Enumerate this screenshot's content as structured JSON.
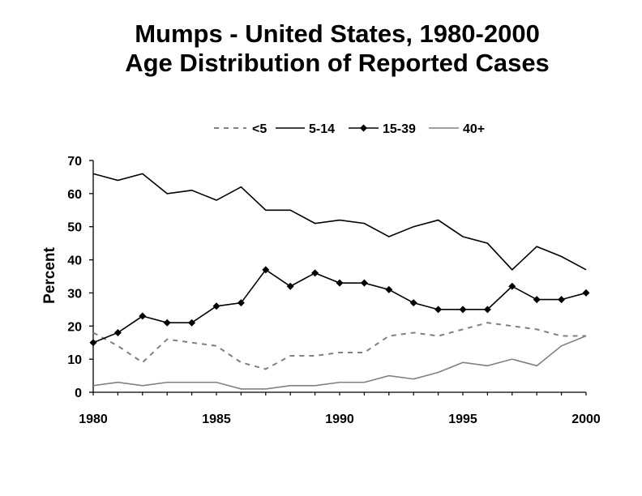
{
  "chart_data": {
    "type": "line",
    "title": "Mumps - United States, 1980-2000",
    "subtitle": "Age Distribution of Reported Cases",
    "xlabel": "",
    "ylabel": "Percent",
    "xlim": [
      1980,
      2000
    ],
    "ylim": [
      0,
      70
    ],
    "x_ticks": [
      1980,
      1985,
      1990,
      1995,
      2000
    ],
    "y_ticks": [
      0,
      10,
      20,
      30,
      40,
      50,
      60,
      70
    ],
    "grid": false,
    "legend_position": "top",
    "x": [
      1980,
      1981,
      1982,
      1983,
      1984,
      1985,
      1986,
      1987,
      1988,
      1989,
      1990,
      1991,
      1992,
      1993,
      1994,
      1995,
      1996,
      1997,
      1998,
      1999,
      2000
    ],
    "series": [
      {
        "name": "<5",
        "style": "dashed",
        "color": "#808080",
        "values": [
          18,
          14,
          9,
          16,
          15,
          14,
          9,
          7,
          11,
          11,
          12,
          12,
          17,
          18,
          17,
          19,
          21,
          20,
          19,
          17,
          17
        ]
      },
      {
        "name": "5-14",
        "style": "solid",
        "color": "#000000",
        "values": [
          66,
          64,
          66,
          60,
          61,
          58,
          62,
          55,
          55,
          51,
          52,
          51,
          47,
          50,
          52,
          47,
          45,
          37,
          44,
          41,
          37
        ]
      },
      {
        "name": "15-39",
        "style": "solid-diamond",
        "color": "#000000",
        "values": [
          15,
          18,
          23,
          21,
          21,
          26,
          27,
          37,
          32,
          36,
          33,
          33,
          31,
          27,
          25,
          25,
          25,
          32,
          28,
          28,
          30
        ]
      },
      {
        "name": "40+",
        "style": "solid",
        "color": "#808080",
        "values": [
          2,
          3,
          2,
          3,
          3,
          3,
          1,
          1,
          2,
          2,
          3,
          3,
          5,
          4,
          6,
          9,
          8,
          10,
          8,
          14,
          17
        ]
      }
    ]
  }
}
